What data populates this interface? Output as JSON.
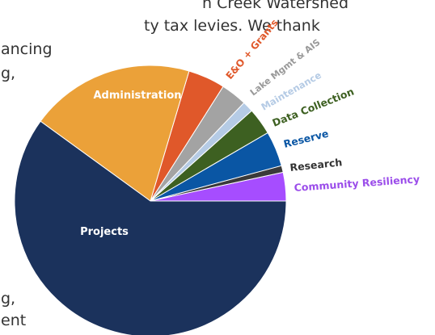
{
  "background_text": {
    "line1": "n Creek Watershed",
    "line2": "ty tax levies. We thank",
    "line3": "ancing",
    "line4": "g,",
    "line5": "g,",
    "line6": "ent"
  },
  "chart_data": {
    "type": "pie",
    "title": "",
    "slices": [
      {
        "label": "Community Resiliency",
        "value": 3.4,
        "color": "#a64dff",
        "label_color": "#9b4dea"
      },
      {
        "label": "Research",
        "value": 0.8,
        "color": "#3a3a3a",
        "label_color": "#333333"
      },
      {
        "label": "Reserve",
        "value": 4.2,
        "color": "#0a56a4",
        "label_color": "#0a56a4"
      },
      {
        "label": "Data Collection",
        "value": 3.2,
        "color": "#3d6021",
        "label_color": "#3d6021"
      },
      {
        "label": "Maintenance",
        "value": 1.3,
        "color": "#b5cbe5",
        "label_color": "#b5cbe5"
      },
      {
        "label": "Lake Mgmt & AIS",
        "value": 3.1,
        "color": "#a3a3a3",
        "label_color": "#999999"
      },
      {
        "label": "E&O + Grants",
        "value": 4.4,
        "color": "#e0582a",
        "label_color": "#e0582a"
      },
      {
        "label": "Administration",
        "value": 19.6,
        "color": "#eba139",
        "label_color": "#ffffff"
      },
      {
        "label": "Projects",
        "value": 60.0,
        "color": "#1b325c",
        "label_color": "#ffffff"
      }
    ]
  }
}
